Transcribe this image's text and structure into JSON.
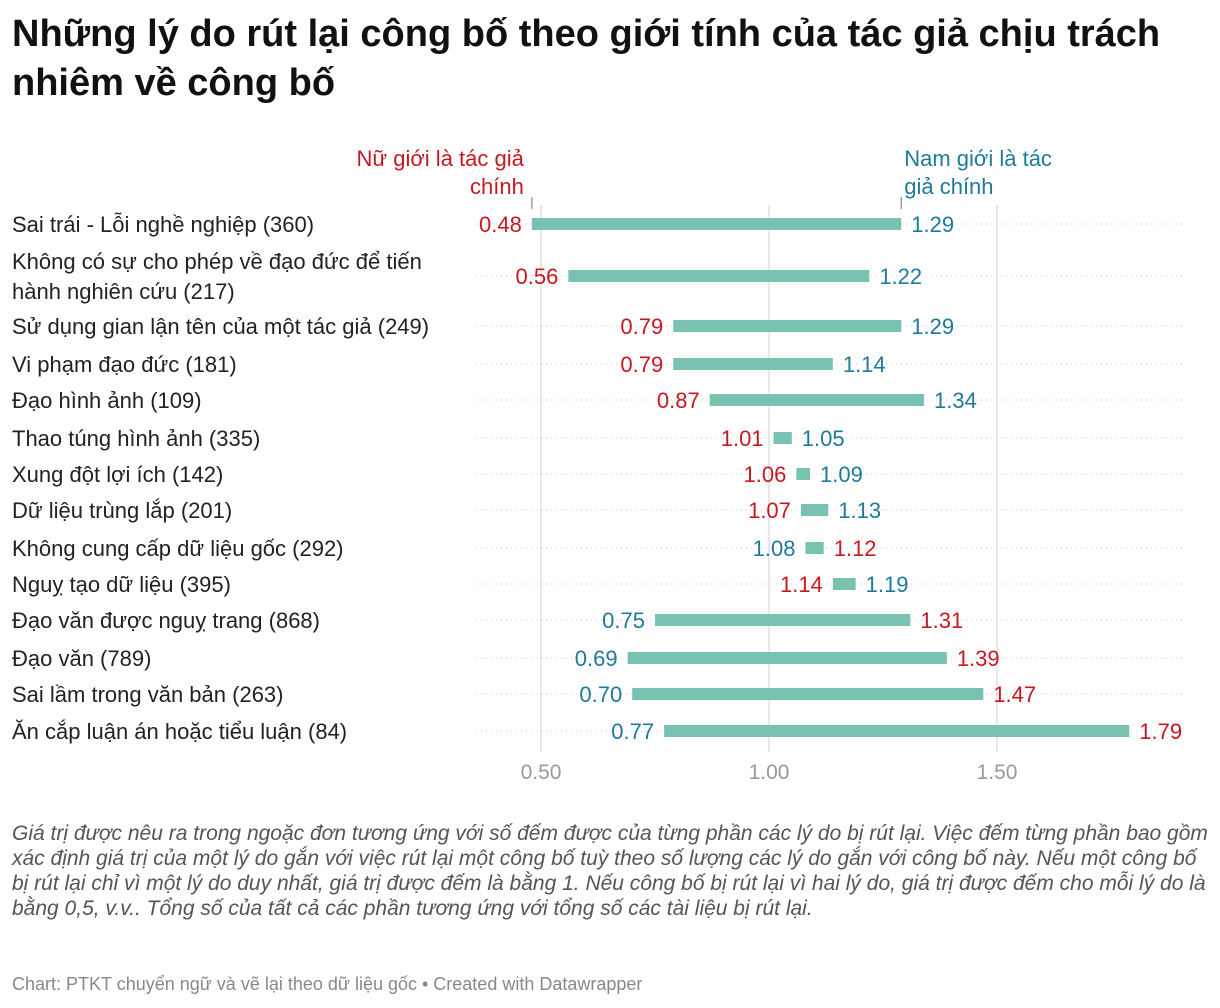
{
  "title": "Những lý do rút lại công bố theo giới tính của tác giả chịu trách nhiêm về công bố",
  "notes": "Giá trị được nêu ra trong ngoặc đơn tương ứng với số đếm được của từng phần các lý do bị rút lại. Việc đếm từng phần bao gồm xác định giá trị của một lý do gắn với việc rút lại một công bố tuỳ theo số lượng các lý do gắn với công bố này. Nếu một công bố bị rút lại chỉ vì một lý do duy nhất, giá trị được đếm là bằng 1. Nếu công bố bị rút lại vì hai lý do, giá trị được đếm cho mỗi lý do là bằng 0,5, v.v.. Tổng số của tất cả các phần tương ứng với tổng số các tài liệu bị rút lại.",
  "source": "Chart: PTKT chuyển ngữ và vẽ lại theo dữ liệu gốc • Created with Datawrapper",
  "colors": {
    "female": "#c7181f",
    "male": "#1f7a99",
    "bar": "#79c2b2",
    "axis": "#999999",
    "grid": "#d0d0d0"
  },
  "chart_data": {
    "type": "range",
    "series": [
      {
        "name": "Nữ giới là tác giả chính",
        "color": "#c7181f"
      },
      {
        "name": "Nam giới là tác giả chính",
        "color": "#1f7a99"
      }
    ],
    "categories": [
      "Sai trái - Lỗi nghề nghiệp (360)",
      "Không có sự cho phép về đạo đức để tiến hành nghiên cứu (217)",
      "Sử dụng gian lận tên của một tác giả (249)",
      "Vi phạm đạo đức (181)",
      "Đạo hình ảnh (109)",
      "Thao túng hình ảnh (335)",
      "Xung đột lợi ích (142)",
      "Dữ liệu trùng lắp (201)",
      "Không cung cấp dữ liệu gốc (292)",
      "Nguỵ tạo dữ liệu (395)",
      "Đạo văn được nguỵ trang (868)",
      "Đạo văn (789)",
      "Sai lầm trong văn bản (263)",
      "Ăn cắp luận án hoặc tiểu luận (84)"
    ],
    "female": [
      "0.48",
      "0.56",
      "0.79",
      "0.79",
      "0.87",
      "1.01",
      "1.06",
      "1.07",
      "1.12",
      "1.14",
      "1.31",
      "1.39",
      "1.47",
      "1.79"
    ],
    "male": [
      "1.29",
      "1.22",
      "1.29",
      "1.14",
      "1.34",
      "1.05",
      "1.09",
      "1.13",
      "1.08",
      "1.19",
      "0.75",
      "0.69",
      "0.70",
      "0.77"
    ],
    "x_ticks": [
      "0.50",
      "1.00",
      "1.50"
    ],
    "xlim": [
      0.35,
      1.85
    ],
    "grid": true
  }
}
